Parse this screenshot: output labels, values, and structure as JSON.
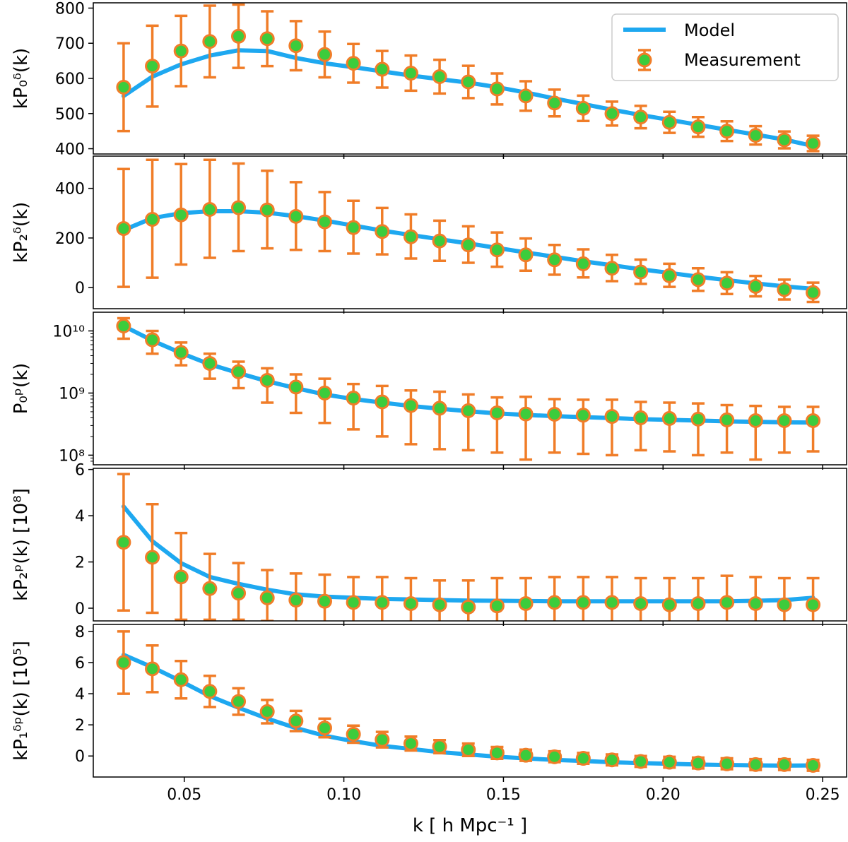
{
  "colors": {
    "model": "#1ea8f0",
    "measurement_edge": "#f07d28",
    "measurement_face": "#3ccc3c",
    "errorbar": "#f07d28",
    "axis": "#000000"
  },
  "legend": {
    "model_label": "Model",
    "measurement_label": "Measurement",
    "position": "top-right"
  },
  "x_axis": {
    "label": "k  [ h Mpc⁻¹ ]",
    "ticks": [
      0.05,
      0.1,
      0.15,
      0.2,
      0.25
    ],
    "tick_labels": [
      "0.05",
      "0.10",
      "0.15",
      "0.20",
      "0.25"
    ],
    "range": [
      0.0215,
      0.2575
    ]
  },
  "chart_data": [
    {
      "type": "line",
      "ylabel": "kP₀ᵟ(k)",
      "ylim": [
        385,
        815
      ],
      "yscale": "linear",
      "yticks": [
        400,
        500,
        600,
        700,
        800
      ],
      "ytick_labels": [
        "400",
        "500",
        "600",
        "700",
        "800"
      ],
      "x": [
        0.031,
        0.04,
        0.049,
        0.058,
        0.067,
        0.076,
        0.085,
        0.094,
        0.103,
        0.112,
        0.121,
        0.13,
        0.139,
        0.148,
        0.157,
        0.166,
        0.175,
        0.184,
        0.193,
        0.202,
        0.211,
        0.22,
        0.229,
        0.238,
        0.247
      ],
      "measurement": [
        575,
        635,
        678,
        705,
        720,
        713,
        693,
        668,
        643,
        626,
        615,
        605,
        590,
        570,
        550,
        530,
        515,
        500,
        490,
        475,
        462,
        450,
        438,
        425,
        415
      ],
      "err_low": [
        125,
        115,
        100,
        102,
        90,
        78,
        70,
        65,
        55,
        52,
        50,
        48,
        46,
        44,
        42,
        38,
        36,
        34,
        32,
        30,
        28,
        28,
        26,
        24,
        22
      ],
      "err_high": [
        125,
        115,
        100,
        102,
        90,
        78,
        70,
        65,
        55,
        52,
        50,
        48,
        46,
        44,
        42,
        38,
        36,
        34,
        32,
        30,
        28,
        28,
        26,
        24,
        22
      ],
      "model": [
        550,
        605,
        640,
        665,
        680,
        678,
        658,
        643,
        632,
        620,
        608,
        598,
        588,
        575,
        560,
        543,
        527,
        511,
        496,
        482,
        468,
        454,
        440,
        426,
        408
      ]
    },
    {
      "type": "line",
      "ylabel": "kP₂ᵟ(k)",
      "ylim": [
        -85,
        530
      ],
      "yscale": "linear",
      "yticks": [
        0,
        200,
        400
      ],
      "ytick_labels": [
        "0",
        "200",
        "400"
      ],
      "x": [
        0.031,
        0.04,
        0.049,
        0.058,
        0.067,
        0.076,
        0.085,
        0.094,
        0.103,
        0.112,
        0.121,
        0.13,
        0.139,
        0.148,
        0.157,
        0.166,
        0.175,
        0.184,
        0.193,
        0.202,
        0.211,
        0.22,
        0.229,
        0.238,
        0.247
      ],
      "measurement": [
        238,
        275,
        293,
        315,
        322,
        313,
        287,
        265,
        242,
        226,
        205,
        188,
        172,
        152,
        132,
        112,
        96,
        78,
        63,
        48,
        32,
        18,
        5,
        -8,
        -20
      ],
      "err_low": [
        235,
        235,
        200,
        195,
        175,
        155,
        135,
        118,
        105,
        92,
        88,
        80,
        72,
        68,
        64,
        60,
        55,
        52,
        48,
        45,
        45,
        44,
        40,
        40,
        38
      ],
      "err_high": [
        240,
        240,
        205,
        200,
        178,
        158,
        138,
        120,
        108,
        95,
        90,
        82,
        75,
        70,
        66,
        60,
        58,
        54,
        50,
        48,
        46,
        44,
        42,
        40,
        40
      ],
      "model": [
        232,
        280,
        300,
        308,
        308,
        302,
        288,
        270,
        250,
        230,
        212,
        195,
        178,
        160,
        142,
        124,
        106,
        90,
        74,
        59,
        44,
        30,
        17,
        5,
        -5
      ]
    },
    {
      "type": "line",
      "ylabel": "P₀ᵖ(k)",
      "ylim": [
        70000000,
        20000000000
      ],
      "yscale": "log",
      "yticks": [
        100000000,
        1000000000,
        10000000000
      ],
      "ytick_labels": [
        "10⁸",
        "10⁹",
        "10¹⁰"
      ],
      "x": [
        0.031,
        0.04,
        0.049,
        0.058,
        0.067,
        0.076,
        0.085,
        0.094,
        0.103,
        0.112,
        0.121,
        0.13,
        0.139,
        0.148,
        0.157,
        0.166,
        0.175,
        0.184,
        0.193,
        0.202,
        0.211,
        0.22,
        0.229,
        0.238,
        0.247
      ],
      "measurement": [
        12000000000,
        7200000000,
        4500000000,
        3000000000,
        2200000000,
        1600000000,
        1250000000,
        1000000000,
        830000000,
        720000000,
        630000000,
        570000000,
        520000000,
        480000000,
        460000000,
        455000000,
        440000000,
        420000000,
        400000000,
        390000000,
        380000000,
        370000000,
        360000000,
        360000000,
        360000000
      ],
      "err_low_value": [
        7500000000,
        4300000000,
        2800000000,
        1700000000,
        1200000000,
        700000000,
        480000000,
        330000000,
        260000000,
        200000000,
        150000000,
        125000000,
        120000000,
        110000000,
        85000000,
        110000000,
        105000000,
        100000000,
        120000000,
        115000000,
        100000000,
        110000000,
        85000000,
        110000000,
        115000000
      ],
      "err_high_value": [
        16000000000,
        10000000000,
        6500000000,
        4300000000,
        3200000000,
        2500000000,
        2000000000,
        1700000000,
        1400000000,
        1300000000,
        1100000000,
        1050000000,
        950000000,
        850000000,
        870000000,
        800000000,
        780000000,
        780000000,
        720000000,
        700000000,
        680000000,
        640000000,
        620000000,
        600000000,
        600000000
      ],
      "model": [
        12000000000,
        7000000000,
        4400000000,
        2900000000,
        2100000000,
        1550000000,
        1200000000,
        950000000,
        800000000,
        700000000,
        620000000,
        560000000,
        510000000,
        470000000,
        445000000,
        425000000,
        410000000,
        395000000,
        380000000,
        370000000,
        360000000,
        350000000,
        345000000,
        338000000,
        335000000
      ]
    },
    {
      "type": "line",
      "ylabel": "kP₂ᵖ(k) [10⁸]",
      "ylim": [
        -0.55,
        6.05
      ],
      "yscale": "linear",
      "yticks": [
        0,
        2,
        4,
        6
      ],
      "ytick_labels": [
        "0",
        "2",
        "4",
        "6"
      ],
      "x": [
        0.031,
        0.04,
        0.049,
        0.058,
        0.067,
        0.076,
        0.085,
        0.094,
        0.103,
        0.112,
        0.121,
        0.13,
        0.139,
        0.148,
        0.157,
        0.166,
        0.175,
        0.184,
        0.193,
        0.202,
        0.211,
        0.22,
        0.229,
        0.238,
        0.247
      ],
      "measurement": [
        2.85,
        2.2,
        1.35,
        0.85,
        0.65,
        0.45,
        0.35,
        0.3,
        0.25,
        0.25,
        0.2,
        0.15,
        0.05,
        0.1,
        0.2,
        0.25,
        0.25,
        0.25,
        0.2,
        0.15,
        0.2,
        0.25,
        0.2,
        0.15,
        0.15
      ],
      "err_low": [
        2.95,
        2.4,
        1.85,
        1.35,
        1.15,
        1.0,
        1.05,
        1.0,
        1.05,
        1.05,
        1.05,
        1.0,
        1.1,
        1.15,
        1.05,
        1.0,
        1.0,
        1.0,
        1.05,
        1.1,
        1.05,
        1.1,
        1.05,
        1.15,
        1.1
      ],
      "err_high": [
        2.95,
        2.3,
        1.9,
        1.5,
        1.3,
        1.2,
        1.15,
        1.15,
        1.1,
        1.1,
        1.1,
        1.05,
        1.15,
        1.2,
        1.1,
        1.1,
        1.1,
        1.1,
        1.1,
        1.15,
        1.1,
        1.15,
        1.15,
        1.15,
        1.15
      ],
      "model": [
        4.4,
        2.9,
        1.95,
        1.35,
        1.05,
        0.8,
        0.6,
        0.5,
        0.45,
        0.4,
        0.38,
        0.35,
        0.33,
        0.32,
        0.31,
        0.3,
        0.3,
        0.3,
        0.3,
        0.3,
        0.3,
        0.3,
        0.32,
        0.35,
        0.45
      ]
    },
    {
      "type": "line",
      "ylabel": "kP₁ᵟᵖ(k) [10⁵]",
      "ylim": [
        -1.35,
        8.45
      ],
      "yscale": "linear",
      "yticks": [
        0,
        2,
        4,
        6,
        8
      ],
      "ytick_labels": [
        "0",
        "2",
        "4",
        "6",
        "8"
      ],
      "x": [
        0.031,
        0.04,
        0.049,
        0.058,
        0.067,
        0.076,
        0.085,
        0.094,
        0.103,
        0.112,
        0.121,
        0.13,
        0.139,
        0.148,
        0.157,
        0.166,
        0.175,
        0.184,
        0.193,
        0.202,
        0.211,
        0.22,
        0.229,
        0.238,
        0.247
      ],
      "measurement": [
        6.0,
        5.6,
        4.9,
        4.15,
        3.5,
        2.85,
        2.25,
        1.8,
        1.4,
        1.05,
        0.8,
        0.6,
        0.4,
        0.2,
        0.05,
        -0.05,
        -0.15,
        -0.25,
        -0.35,
        -0.4,
        -0.45,
        -0.5,
        -0.55,
        -0.55,
        -0.6
      ],
      "err_low": [
        2.0,
        1.5,
        1.2,
        1.0,
        0.85,
        0.75,
        0.65,
        0.6,
        0.55,
        0.5,
        0.45,
        0.42,
        0.4,
        0.38,
        0.36,
        0.35,
        0.35,
        0.35,
        0.35,
        0.35,
        0.35,
        0.35,
        0.35,
        0.35,
        0.35
      ],
      "err_high": [
        2.0,
        1.5,
        1.2,
        1.0,
        0.85,
        0.75,
        0.65,
        0.6,
        0.55,
        0.5,
        0.45,
        0.42,
        0.4,
        0.38,
        0.36,
        0.35,
        0.35,
        0.35,
        0.35,
        0.35,
        0.35,
        0.35,
        0.35,
        0.35,
        0.35
      ],
      "model": [
        6.5,
        5.7,
        4.8,
        3.85,
        3.1,
        2.4,
        1.8,
        1.3,
        0.95,
        0.65,
        0.45,
        0.25,
        0.1,
        -0.05,
        -0.15,
        -0.25,
        -0.32,
        -0.4,
        -0.45,
        -0.5,
        -0.55,
        -0.58,
        -0.6,
        -0.62,
        -0.6
      ]
    }
  ]
}
